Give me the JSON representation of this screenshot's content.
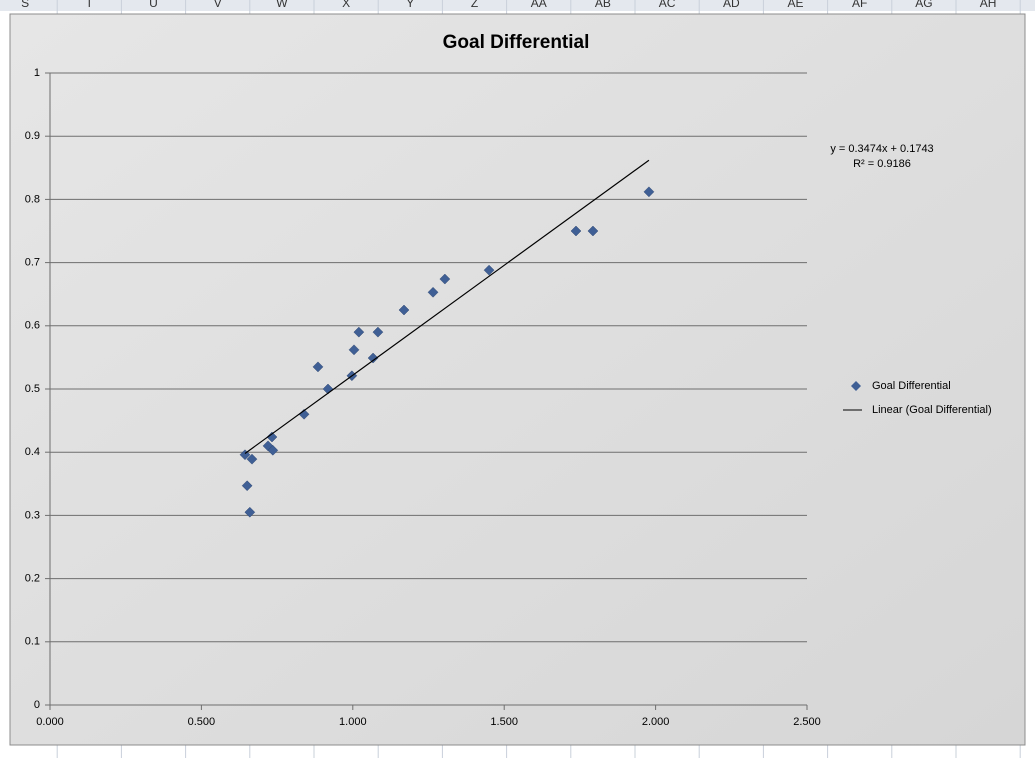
{
  "spreadsheet": {
    "columns": [
      "S",
      "T",
      "U",
      "V",
      "W",
      "X",
      "Y",
      "Z",
      "AA",
      "AB",
      "AC",
      "AD",
      "AE",
      "AF",
      "AG",
      "AH"
    ]
  },
  "chart_data": {
    "type": "scatter",
    "title": "Goal Differential",
    "xlim": [
      0,
      2.5
    ],
    "xticks": [
      {
        "value": 0,
        "label": "0.000"
      },
      {
        "value": 0.5,
        "label": "0.500"
      },
      {
        "value": 1,
        "label": "1.000"
      },
      {
        "value": 1.5,
        "label": "1.500"
      },
      {
        "value": 2,
        "label": "2.000"
      },
      {
        "value": 2.5,
        "label": "2.500"
      }
    ],
    "ylim": [
      0,
      1
    ],
    "yticks": [
      0,
      0.1,
      0.2,
      0.3,
      0.4,
      0.5,
      0.6,
      0.7,
      0.8,
      0.9,
      1
    ],
    "grid": true,
    "legend": "right",
    "series": [
      {
        "name": "Goal Differential",
        "color": "#3f5f95",
        "x": [
          0.644,
          0.651,
          0.66,
          0.667,
          0.72,
          0.733,
          0.736,
          0.839,
          0.885,
          0.918,
          0.997,
          1.004,
          1.02,
          1.067,
          1.083,
          1.169,
          1.265,
          1.304,
          1.45,
          1.737,
          1.793,
          1.978
        ],
        "values": [
          0.396,
          0.347,
          0.305,
          0.389,
          0.41,
          0.424,
          0.403,
          0.46,
          0.535,
          0.5,
          0.521,
          0.562,
          0.59,
          0.549,
          0.59,
          0.625,
          0.653,
          0.674,
          0.688,
          0.75,
          0.75,
          0.812
        ]
      },
      {
        "name": "Linear (Goal Differential)",
        "color": "#000000",
        "type": "line",
        "x": [
          0.644,
          1.978
        ],
        "values": [
          0.398,
          0.862
        ]
      }
    ],
    "annotations": [
      "y = 0.3474x + 0.1743",
      "R² = 0.9186"
    ]
  }
}
